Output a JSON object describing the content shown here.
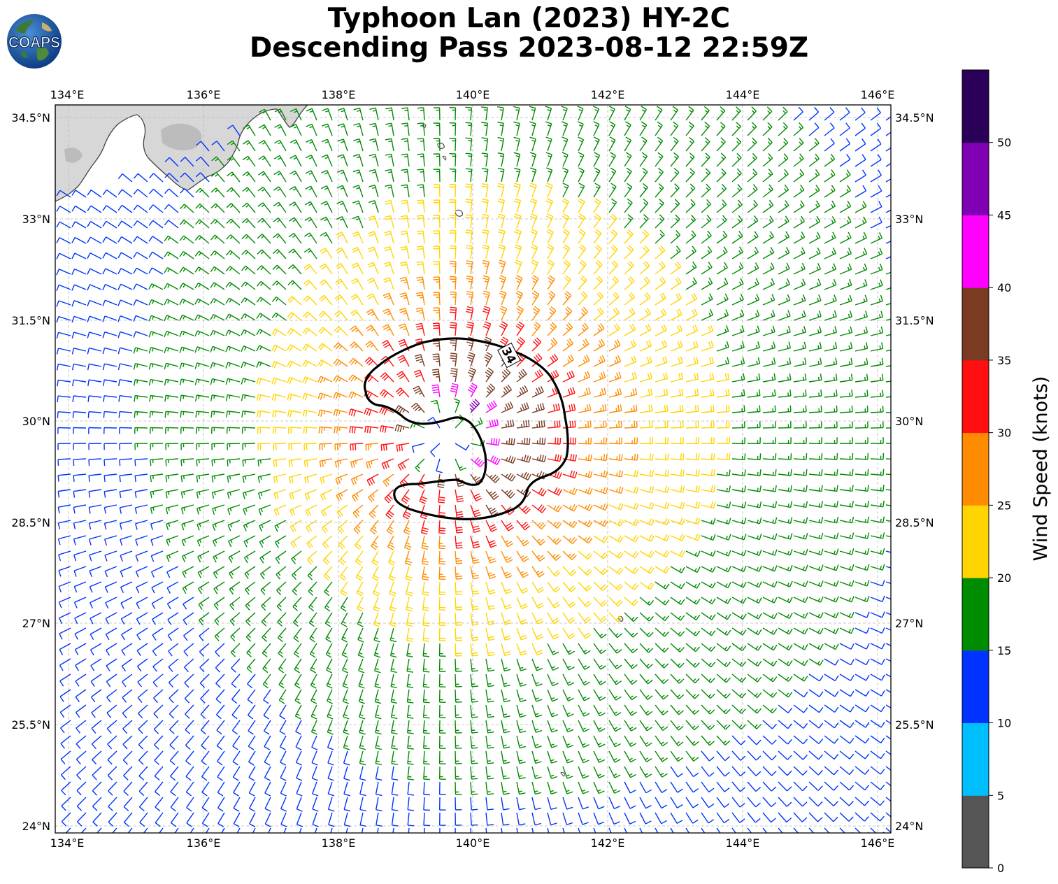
{
  "title": {
    "line1": "Typhoon Lan (2023) HY-2C",
    "line2": "Descending Pass 2023-08-12 22:59Z"
  },
  "logo": {
    "text": "COAPS"
  },
  "map": {
    "lon_ticks": [
      "134°E",
      "136°E",
      "138°E",
      "140°E",
      "142°E",
      "144°E",
      "146°E"
    ],
    "lat_ticks": [
      "34.5°N",
      "33°N",
      "31.5°N",
      "30°N",
      "28.5°N",
      "27°N",
      "25.5°N",
      "24°N"
    ],
    "contour_label": "34",
    "storm_center": {
      "lon": 139.6,
      "lat": 29.75
    },
    "land_color": "#d4d4d4"
  },
  "colorbar": {
    "label": "Wind Speed (knots)",
    "tick_labels": [
      "0",
      "5",
      "10",
      "15",
      "20",
      "25",
      "30",
      "35",
      "40",
      "45",
      "50"
    ],
    "colors": [
      "#555555",
      "#00bfff",
      "#0033ff",
      "#008c00",
      "#ffd400",
      "#ff8c00",
      "#ff0f0f",
      "#7a3b22",
      "#ff00ff",
      "#8000b4",
      "#2b0059"
    ]
  }
}
